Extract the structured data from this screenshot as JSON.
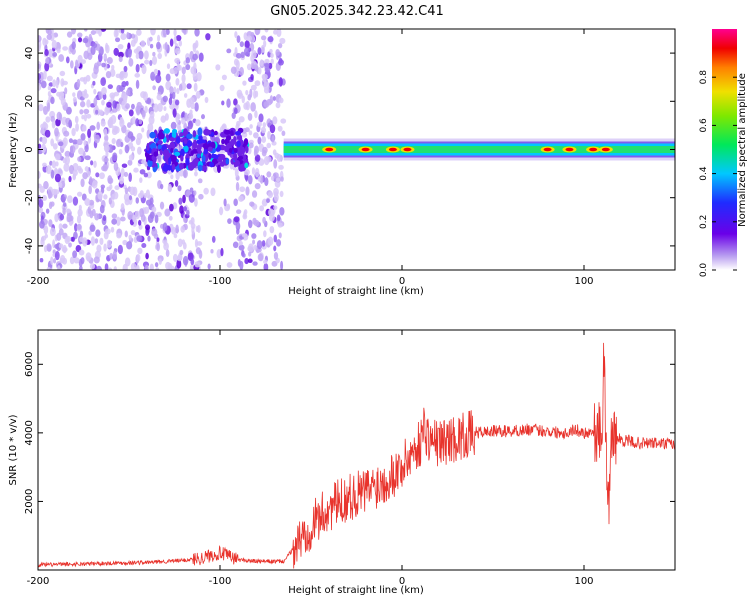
{
  "page_title": "GN05.2025.342.23.42.C41",
  "chart_data": [
    {
      "type": "heatmap",
      "title": "GN05.2025.342.23.42.C41",
      "xlabel": "Height of straight line (km)",
      "ylabel": "Frequency (Hz)",
      "xlim": [
        -200,
        150
      ],
      "ylim": [
        -50,
        50
      ],
      "xticks": [
        -200,
        -100,
        0,
        100
      ],
      "yticks": [
        -40,
        -20,
        0,
        20,
        40
      ],
      "grid": false,
      "colorbar": {
        "label": "Normalized spectral amplitude",
        "range": [
          0.0,
          1.0
        ],
        "ticks": [
          0.0,
          0.2,
          0.4,
          0.6,
          0.8
        ],
        "colormap": "rainbow (violet-blue-cyan-green-yellow-red-magenta)"
      },
      "regions": [
        {
          "x_from": -200,
          "x_to": -65,
          "pattern": "scattered violet speckle over full frequency band"
        },
        {
          "x_from": -140,
          "x_to": -85,
          "pattern": "dense purple/blue cluster near 0 Hz"
        },
        {
          "x_from": -65,
          "x_to": 150,
          "pattern": "narrow band centred near 0 Hz, green-cyan with red peaks"
        }
      ],
      "ridge_peaks_km": [
        -40,
        -20,
        -5,
        3,
        80,
        92,
        105,
        112
      ]
    },
    {
      "type": "line",
      "title": "",
      "xlabel": "Height of straight line (km)",
      "ylabel": "SNR (10 * v/v)",
      "xlim": [
        -200,
        150
      ],
      "ylim": [
        0,
        7000
      ],
      "xticks": [
        -200,
        -100,
        0,
        100
      ],
      "yticks": [
        2000,
        4000,
        6000
      ],
      "grid": false,
      "color": "#e8332c",
      "series": [
        {
          "x": [
            -200,
            -180,
            -160,
            -140,
            -120,
            -110,
            -100,
            -90,
            -80,
            -65,
            -60,
            -50,
            -40,
            -30,
            -20,
            -10,
            0,
            5,
            10,
            12,
            15,
            20,
            30,
            40,
            50,
            60,
            70,
            80,
            90,
            95,
            100,
            105,
            110,
            111,
            113,
            115,
            120,
            130,
            140,
            150
          ],
          "values": [
            150,
            170,
            200,
            220,
            280,
            350,
            500,
            300,
            250,
            250,
            600,
            1300,
            1800,
            2100,
            2300,
            2600,
            3000,
            3400,
            3700,
            4200,
            3800,
            3700,
            3850,
            4000,
            4050,
            4050,
            4100,
            4050,
            4000,
            4100,
            4000,
            4050,
            4000,
            6500,
            1200,
            3900,
            3800,
            3700,
            3700,
            3650
          ]
        }
      ]
    }
  ]
}
